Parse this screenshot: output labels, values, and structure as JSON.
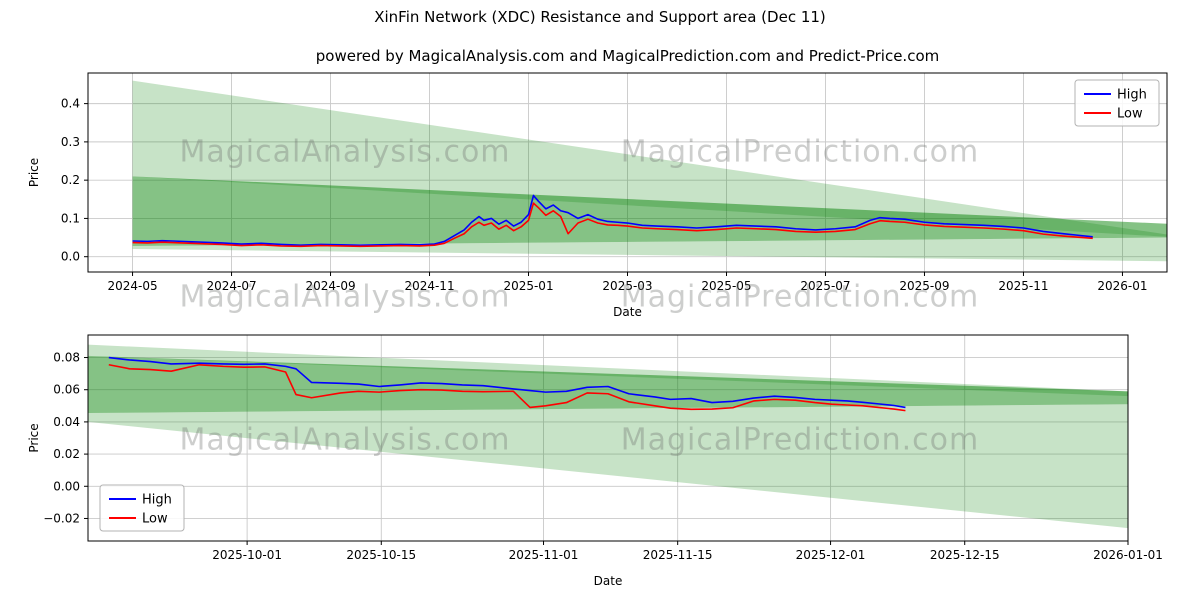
{
  "header": {
    "title": "XinFin Network (XDC) Resistance and Support area (Dec 11)",
    "subtitle": "powered by MagicalAnalysis.com and MagicalPrediction.com and Predict-Price.com"
  },
  "watermarks": {
    "left": "MagicalAnalysis.com",
    "right": "MagicalPrediction.com"
  },
  "colors": {
    "high": "#0000ff",
    "low": "#ff0000",
    "band": "#008000",
    "grid": "#c9c9c9"
  },
  "chart_data": [
    {
      "type": "line",
      "title": "",
      "xlabel": "Date",
      "ylabel": "Price",
      "xlim": [
        -0.9,
        20.9
      ],
      "ylim": [
        -0.04,
        0.48
      ],
      "xticks": [
        {
          "v": 0,
          "label": "2024-05"
        },
        {
          "v": 2,
          "label": "2024-07"
        },
        {
          "v": 4,
          "label": "2024-09"
        },
        {
          "v": 6,
          "label": "2024-11"
        },
        {
          "v": 8,
          "label": "2025-01"
        },
        {
          "v": 10,
          "label": "2025-03"
        },
        {
          "v": 12,
          "label": "2025-05"
        },
        {
          "v": 14,
          "label": "2025-07"
        },
        {
          "v": 16,
          "label": "2025-09"
        },
        {
          "v": 18,
          "label": "2025-11"
        },
        {
          "v": 20,
          "label": "2026-01"
        }
      ],
      "yticks": [
        {
          "v": 0.0,
          "label": "0.0"
        },
        {
          "v": 0.1,
          "label": "0.1"
        },
        {
          "v": 0.2,
          "label": "0.2"
        },
        {
          "v": 0.3,
          "label": "0.3"
        },
        {
          "v": 0.4,
          "label": "0.4"
        }
      ],
      "legend_pos": "upper right",
      "bands": [
        {
          "color": "#008000",
          "alpha": 0.22,
          "poly": [
            [
              0,
              0.46
            ],
            [
              20.9,
              0.058
            ],
            [
              20.9,
              0.052
            ],
            [
              0,
              0.21
            ]
          ]
        },
        {
          "color": "#008000",
          "alpha": 0.48,
          "poly": [
            [
              0,
              0.21
            ],
            [
              20.9,
              0.086
            ],
            [
              20.9,
              0.05
            ],
            [
              0,
              0.028
            ]
          ]
        },
        {
          "color": "#008000",
          "alpha": 0.22,
          "poly": [
            [
              0,
              0.028
            ],
            [
              20.9,
              0.05
            ],
            [
              20.9,
              -0.012
            ],
            [
              0,
              0.02
            ]
          ]
        }
      ],
      "series": [
        {
          "name": "High",
          "color": "#0000ff",
          "x": [
            0,
            0.3,
            0.6,
            1,
            1.4,
            1.8,
            2.2,
            2.6,
            3,
            3.4,
            3.8,
            4.2,
            4.6,
            5,
            5.4,
            5.8,
            6.1,
            6.3,
            6.5,
            6.7,
            6.85,
            7.0,
            7.1,
            7.25,
            7.4,
            7.55,
            7.7,
            7.85,
            8.0,
            8.1,
            8.2,
            8.35,
            8.5,
            8.65,
            8.8,
            9.0,
            9.2,
            9.4,
            9.6,
            9.8,
            10.0,
            10.3,
            10.6,
            11.0,
            11.4,
            11.8,
            12.2,
            12.6,
            13.0,
            13.4,
            13.8,
            14.2,
            14.6,
            14.9,
            15.1,
            15.3,
            15.6,
            16.0,
            16.4,
            16.8,
            17.2,
            17.6,
            18.0,
            18.4,
            18.8,
            19.1,
            19.4
          ],
          "y": [
            0.041,
            0.04,
            0.042,
            0.04,
            0.038,
            0.036,
            0.033,
            0.035,
            0.032,
            0.03,
            0.032,
            0.031,
            0.03,
            0.031,
            0.032,
            0.031,
            0.033,
            0.04,
            0.055,
            0.07,
            0.09,
            0.105,
            0.095,
            0.1,
            0.085,
            0.095,
            0.08,
            0.09,
            0.11,
            0.16,
            0.145,
            0.125,
            0.135,
            0.12,
            0.115,
            0.1,
            0.11,
            0.098,
            0.092,
            0.09,
            0.088,
            0.082,
            0.08,
            0.078,
            0.075,
            0.078,
            0.082,
            0.08,
            0.078,
            0.073,
            0.07,
            0.073,
            0.078,
            0.095,
            0.102,
            0.1,
            0.098,
            0.09,
            0.086,
            0.084,
            0.082,
            0.079,
            0.075,
            0.066,
            0.06,
            0.056,
            0.052
          ]
        },
        {
          "name": "Low",
          "color": "#ff0000",
          "x": [
            0,
            0.3,
            0.6,
            1,
            1.4,
            1.8,
            2.2,
            2.6,
            3,
            3.4,
            3.8,
            4.2,
            4.6,
            5,
            5.4,
            5.8,
            6.1,
            6.3,
            6.5,
            6.7,
            6.85,
            7.0,
            7.1,
            7.25,
            7.4,
            7.55,
            7.7,
            7.85,
            8.0,
            8.1,
            8.2,
            8.35,
            8.5,
            8.65,
            8.8,
            9.0,
            9.2,
            9.4,
            9.6,
            9.8,
            10.0,
            10.3,
            10.6,
            11.0,
            11.4,
            11.8,
            12.2,
            12.6,
            13.0,
            13.4,
            13.8,
            14.2,
            14.6,
            14.9,
            15.1,
            15.3,
            15.6,
            16.0,
            16.4,
            16.8,
            17.2,
            17.6,
            18.0,
            18.4,
            18.8,
            19.1,
            19.4
          ],
          "y": [
            0.037,
            0.036,
            0.038,
            0.036,
            0.034,
            0.032,
            0.029,
            0.031,
            0.028,
            0.027,
            0.029,
            0.028,
            0.027,
            0.028,
            0.029,
            0.028,
            0.03,
            0.035,
            0.048,
            0.06,
            0.078,
            0.09,
            0.082,
            0.088,
            0.072,
            0.082,
            0.068,
            0.078,
            0.095,
            0.14,
            0.128,
            0.108,
            0.12,
            0.105,
            0.06,
            0.088,
            0.098,
            0.088,
            0.083,
            0.082,
            0.08,
            0.075,
            0.073,
            0.071,
            0.068,
            0.071,
            0.075,
            0.073,
            0.071,
            0.066,
            0.064,
            0.066,
            0.071,
            0.086,
            0.094,
            0.092,
            0.09,
            0.083,
            0.079,
            0.077,
            0.075,
            0.072,
            0.068,
            0.059,
            0.054,
            0.051,
            0.048
          ]
        }
      ]
    },
    {
      "type": "line",
      "title": "",
      "xlabel": "Date",
      "ylabel": "Price",
      "xlim": [
        0,
        1
      ],
      "ylim": [
        -0.034,
        0.094
      ],
      "xticks": [
        {
          "v": 0.153,
          "label": "2025-10-01"
        },
        {
          "v": 0.282,
          "label": "2025-10-15"
        },
        {
          "v": 0.438,
          "label": "2025-11-01"
        },
        {
          "v": 0.567,
          "label": "2025-11-15"
        },
        {
          "v": 0.714,
          "label": "2025-12-01"
        },
        {
          "v": 0.843,
          "label": "2025-12-15"
        },
        {
          "v": 1.0,
          "label": "2026-01-01"
        }
      ],
      "yticks": [
        {
          "v": -0.02,
          "label": "−0.02"
        },
        {
          "v": 0.0,
          "label": "0.00"
        },
        {
          "v": 0.02,
          "label": "0.02"
        },
        {
          "v": 0.04,
          "label": "0.04"
        },
        {
          "v": 0.06,
          "label": "0.06"
        },
        {
          "v": 0.08,
          "label": "0.08"
        }
      ],
      "legend_pos": "lower left",
      "bands": [
        {
          "color": "#008000",
          "alpha": 0.22,
          "poly": [
            [
              0,
              0.088
            ],
            [
              1,
              0.059
            ],
            [
              1,
              0.056
            ],
            [
              0,
              0.081
            ]
          ]
        },
        {
          "color": "#008000",
          "alpha": 0.48,
          "poly": [
            [
              0,
              0.081
            ],
            [
              1,
              0.059
            ],
            [
              1,
              0.051
            ],
            [
              0,
              0.0455
            ]
          ]
        },
        {
          "color": "#008000",
          "alpha": 0.22,
          "poly": [
            [
              0,
              0.0455
            ],
            [
              1,
              0.051
            ],
            [
              1,
              -0.026
            ],
            [
              0,
              0.04
            ]
          ]
        }
      ],
      "series": [
        {
          "name": "High",
          "color": "#0000ff",
          "x": [
            0.02,
            0.04,
            0.06,
            0.08,
            0.107,
            0.13,
            0.15,
            0.17,
            0.19,
            0.2,
            0.215,
            0.243,
            0.26,
            0.28,
            0.3,
            0.32,
            0.34,
            0.36,
            0.38,
            0.409,
            0.425,
            0.44,
            0.46,
            0.48,
            0.5,
            0.52,
            0.545,
            0.56,
            0.58,
            0.6,
            0.62,
            0.64,
            0.66,
            0.68,
            0.699,
            0.715,
            0.73,
            0.745,
            0.76,
            0.775,
            0.786
          ],
          "y": [
            0.08,
            0.0785,
            0.0775,
            0.076,
            0.0765,
            0.076,
            0.0758,
            0.076,
            0.0745,
            0.073,
            0.0645,
            0.064,
            0.0635,
            0.062,
            0.063,
            0.0642,
            0.0638,
            0.063,
            0.0625,
            0.0605,
            0.0595,
            0.0585,
            0.059,
            0.0615,
            0.062,
            0.0575,
            0.0555,
            0.054,
            0.0545,
            0.052,
            0.0528,
            0.0548,
            0.056,
            0.0552,
            0.054,
            0.0535,
            0.053,
            0.0522,
            0.0512,
            0.0502,
            0.049
          ]
        },
        {
          "name": "Low",
          "color": "#ff0000",
          "x": [
            0.02,
            0.04,
            0.06,
            0.08,
            0.107,
            0.13,
            0.15,
            0.17,
            0.19,
            0.2,
            0.215,
            0.243,
            0.26,
            0.28,
            0.3,
            0.32,
            0.34,
            0.36,
            0.38,
            0.409,
            0.425,
            0.44,
            0.46,
            0.48,
            0.5,
            0.52,
            0.545,
            0.56,
            0.58,
            0.6,
            0.62,
            0.64,
            0.66,
            0.68,
            0.699,
            0.715,
            0.73,
            0.745,
            0.76,
            0.775,
            0.786
          ],
          "y": [
            0.0755,
            0.073,
            0.0725,
            0.0715,
            0.0755,
            0.0745,
            0.074,
            0.0742,
            0.071,
            0.057,
            0.055,
            0.058,
            0.059,
            0.0585,
            0.0595,
            0.06,
            0.0598,
            0.059,
            0.0588,
            0.059,
            0.049,
            0.05,
            0.052,
            0.058,
            0.0575,
            0.0525,
            0.05,
            0.0485,
            0.0478,
            0.048,
            0.0488,
            0.053,
            0.054,
            0.0535,
            0.052,
            0.051,
            0.0505,
            0.05,
            0.049,
            0.048,
            0.047
          ]
        }
      ]
    }
  ]
}
